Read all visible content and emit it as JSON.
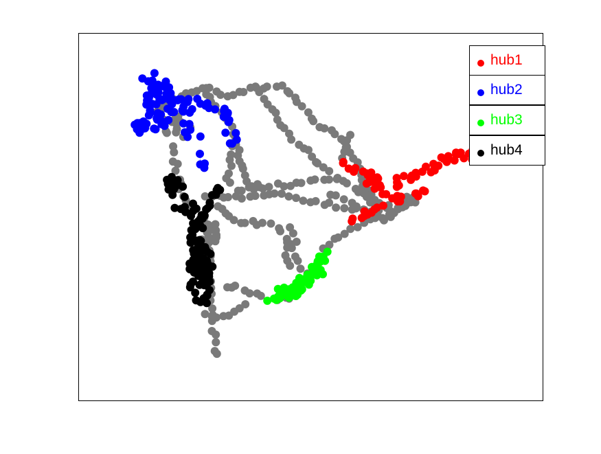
{
  "legend": {
    "items": [
      {
        "label": "hub1",
        "color": "#ff0000"
      },
      {
        "label": "hub2",
        "color": "#0000ff"
      },
      {
        "label": "hub3",
        "color": "#00ff00"
      },
      {
        "label": "hub4",
        "color": "#000000"
      }
    ]
  },
  "colors": {
    "other_nodes": "#7a7a7a",
    "other_edges": "#c8c8c8"
  }
}
